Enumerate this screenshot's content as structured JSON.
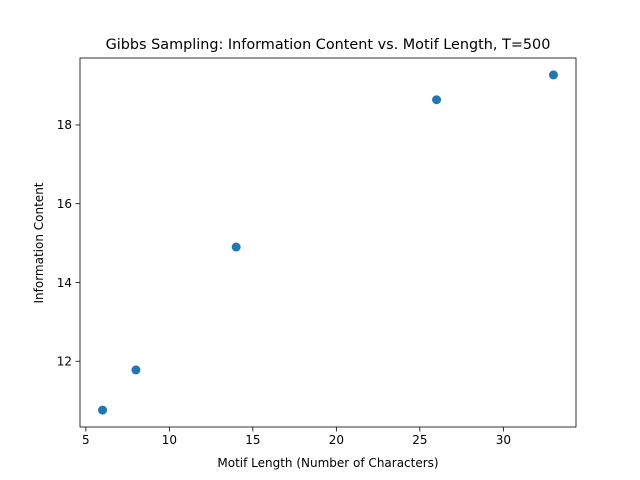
{
  "chart_data": {
    "type": "scatter",
    "title": "Gibbs Sampling: Information Content vs. Motif Length, T=500",
    "xlabel": "Motif Length (Number of Characters)",
    "ylabel": "Information Content",
    "xlim": [
      4.65,
      34.35
    ],
    "ylim": [
      10.33,
      19.7
    ],
    "xticks": [
      5,
      10,
      15,
      20,
      25,
      30
    ],
    "yticks": [
      12,
      14,
      16,
      18
    ],
    "x_tick_labels": [
      "5",
      "10",
      "15",
      "20",
      "25",
      "30"
    ],
    "y_tick_labels": [
      "12",
      "14",
      "16",
      "18"
    ],
    "points": [
      {
        "x": 6,
        "y": 10.76
      },
      {
        "x": 8,
        "y": 11.78
      },
      {
        "x": 14,
        "y": 14.9
      },
      {
        "x": 26,
        "y": 18.64
      },
      {
        "x": 33,
        "y": 19.27
      }
    ],
    "marker_color": "#1f77b4",
    "grid": false
  }
}
